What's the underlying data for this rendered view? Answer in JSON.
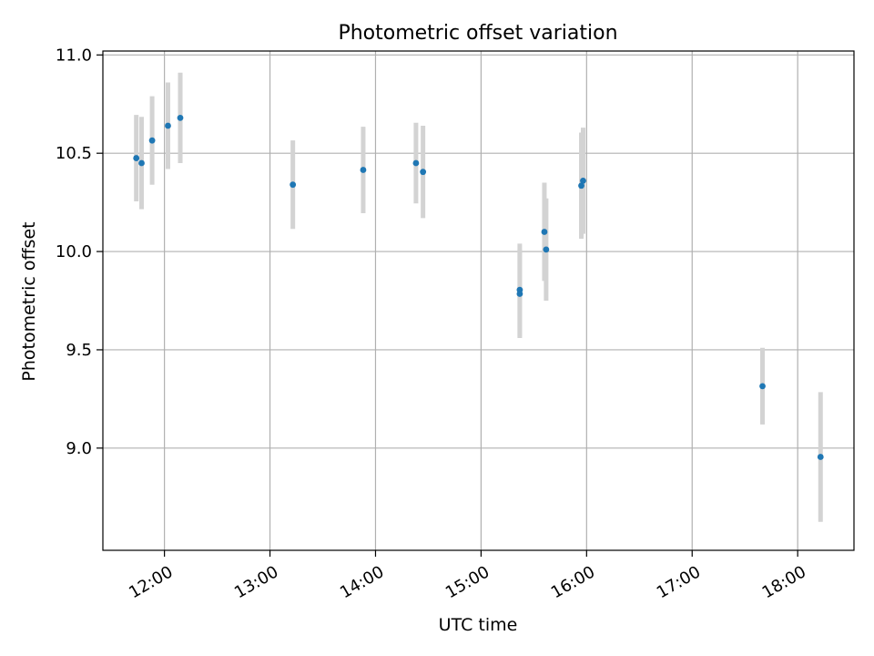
{
  "chart_data": {
    "type": "scatter",
    "title": "Photometric offset variation",
    "xlabel": "UTC time",
    "ylabel": "Photometric offset",
    "xlim": [
      "11:25",
      "18:32"
    ],
    "ylim": [
      8.48,
      11.02
    ],
    "x_ticks": [
      "12:00",
      "13:00",
      "14:00",
      "15:00",
      "16:00",
      "17:00",
      "18:00"
    ],
    "y_ticks": [
      9.0,
      9.5,
      10.0,
      10.5,
      11.0
    ],
    "y_tick_labels": [
      "9.0",
      "9.5",
      "10.0",
      "10.5",
      "11.0"
    ],
    "grid": true,
    "series": [
      {
        "marker_color": "#1f77b4",
        "errorbar_color": "#d3d3d3",
        "points": [
          {
            "x": "11:44",
            "y": 10.475,
            "err": 0.22
          },
          {
            "x": "11:47",
            "y": 10.45,
            "err": 0.235
          },
          {
            "x": "11:53",
            "y": 10.565,
            "err": 0.225
          },
          {
            "x": "12:02",
            "y": 10.64,
            "err": 0.22
          },
          {
            "x": "12:09",
            "y": 10.68,
            "err": 0.23
          },
          {
            "x": "13:13",
            "y": 10.34,
            "err": 0.225
          },
          {
            "x": "13:53",
            "y": 10.415,
            "err": 0.22
          },
          {
            "x": "14:23",
            "y": 10.45,
            "err": 0.205
          },
          {
            "x": "14:27",
            "y": 10.405,
            "err": 0.235
          },
          {
            "x": "15:22",
            "y": 9.805,
            "err": 0.235
          },
          {
            "x": "15:22",
            "y": 9.785,
            "err": 0.225
          },
          {
            "x": "15:36",
            "y": 10.1,
            "err": 0.25
          },
          {
            "x": "15:37",
            "y": 10.01,
            "err": 0.26
          },
          {
            "x": "15:57",
            "y": 10.335,
            "err": 0.27
          },
          {
            "x": "15:58",
            "y": 10.36,
            "err": 0.27
          },
          {
            "x": "17:40",
            "y": 9.315,
            "err": 0.195
          },
          {
            "x": "18:13",
            "y": 8.955,
            "err": 0.33
          }
        ]
      }
    ]
  }
}
